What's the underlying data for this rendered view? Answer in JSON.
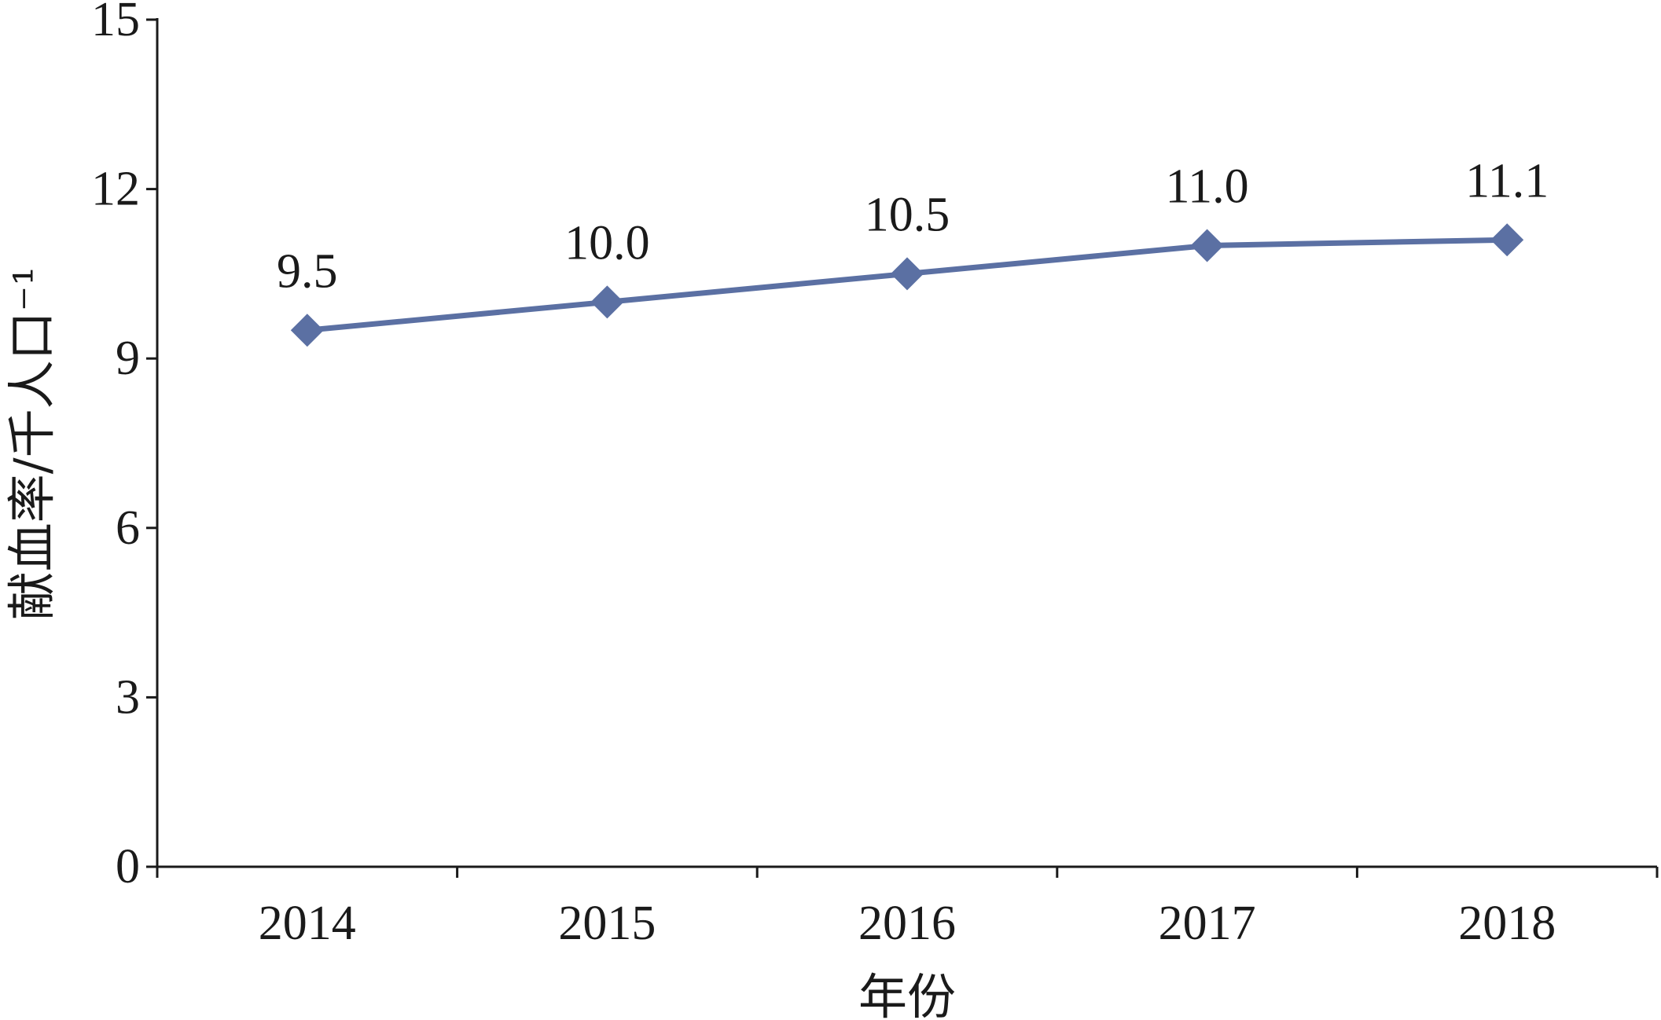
{
  "chart_data": {
    "type": "line",
    "xlabel": "年份",
    "ylabel": "献血率/千人口⁻¹",
    "categories": [
      "2014",
      "2015",
      "2016",
      "2017",
      "2018"
    ],
    "series": [
      {
        "values": [
          9.5,
          10.0,
          10.5,
          11.0,
          11.1
        ],
        "color": "#5b70a3",
        "marker": "diamond"
      }
    ],
    "data_labels": [
      "9.5",
      "10.0",
      "10.5",
      "11.0",
      "11.1"
    ],
    "ylim": [
      0,
      15
    ],
    "yticks": [
      "0",
      "3",
      "6",
      "9",
      "12",
      "15"
    ],
    "grid": false,
    "legend": "none"
  }
}
